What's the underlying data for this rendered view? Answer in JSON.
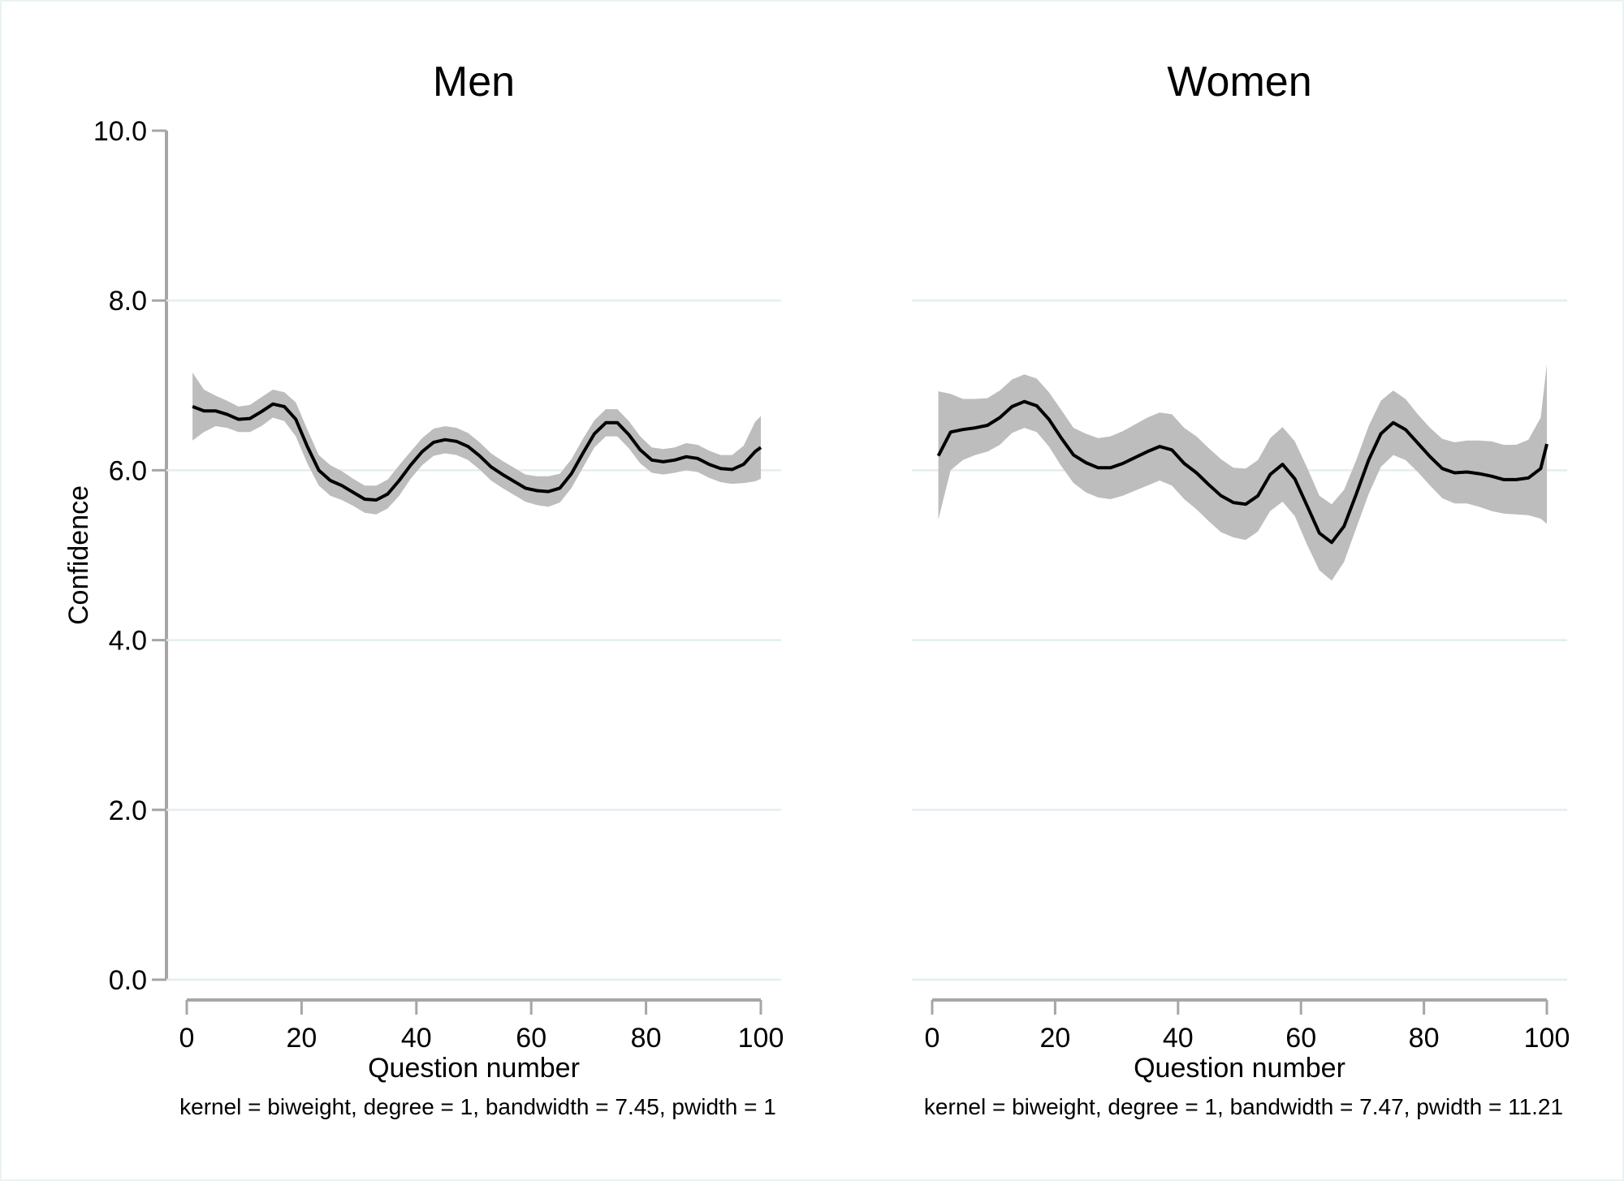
{
  "chart_data": {
    "type": "line",
    "ylabel": "Confidence",
    "ylim": [
      0,
      10
    ],
    "xlim": [
      0,
      100
    ],
    "yticks": [
      "0.0",
      "2.0",
      "4.0",
      "6.0",
      "8.0",
      "10.0"
    ],
    "xticks": [
      "0",
      "20",
      "40",
      "60",
      "80",
      "100"
    ],
    "grid": true,
    "colors": {
      "line": "#000000",
      "band": "#bdbdbd",
      "grid": "#e3eef0",
      "axis": "#a6a6a6"
    },
    "panels": [
      {
        "title": "Men",
        "xlabel": "Question number",
        "note": "kernel = biweight, degree = 1, bandwidth = 7.45, pwidth = 1",
        "series": {
          "x": [
            1,
            3,
            5,
            7,
            9,
            11,
            13,
            15,
            17,
            19,
            21,
            23,
            25,
            27,
            29,
            31,
            33,
            35,
            37,
            39,
            41,
            43,
            45,
            47,
            49,
            51,
            53,
            55,
            57,
            59,
            61,
            63,
            65,
            67,
            69,
            71,
            73,
            75,
            77,
            79,
            81,
            83,
            85,
            87,
            89,
            91,
            93,
            95,
            97,
            99,
            100
          ],
          "y": [
            6.75,
            6.7,
            6.7,
            6.66,
            6.6,
            6.61,
            6.69,
            6.78,
            6.75,
            6.6,
            6.28,
            6.0,
            5.88,
            5.82,
            5.74,
            5.66,
            5.65,
            5.72,
            5.88,
            6.06,
            6.22,
            6.33,
            6.36,
            6.34,
            6.28,
            6.17,
            6.04,
            5.95,
            5.87,
            5.79,
            5.76,
            5.75,
            5.79,
            5.96,
            6.2,
            6.43,
            6.56,
            6.56,
            6.42,
            6.24,
            6.12,
            6.1,
            6.12,
            6.16,
            6.14,
            6.07,
            6.02,
            6.01,
            6.07,
            6.22,
            6.27
          ],
          "lower": [
            6.35,
            6.45,
            6.52,
            6.5,
            6.45,
            6.45,
            6.52,
            6.62,
            6.58,
            6.4,
            6.08,
            5.82,
            5.7,
            5.65,
            5.58,
            5.5,
            5.48,
            5.55,
            5.7,
            5.9,
            6.06,
            6.17,
            6.2,
            6.18,
            6.12,
            6.01,
            5.88,
            5.79,
            5.71,
            5.63,
            5.59,
            5.57,
            5.62,
            5.79,
            6.03,
            6.27,
            6.4,
            6.4,
            6.26,
            6.08,
            5.97,
            5.95,
            5.97,
            6.0,
            5.98,
            5.91,
            5.86,
            5.84,
            5.85,
            5.87,
            5.9
          ],
          "upper": [
            7.15,
            6.95,
            6.88,
            6.82,
            6.75,
            6.77,
            6.86,
            6.95,
            6.92,
            6.8,
            6.48,
            6.18,
            6.06,
            5.99,
            5.9,
            5.82,
            5.82,
            5.89,
            6.06,
            6.22,
            6.38,
            6.49,
            6.52,
            6.5,
            6.44,
            6.33,
            6.2,
            6.11,
            6.03,
            5.95,
            5.93,
            5.93,
            5.96,
            6.13,
            6.37,
            6.59,
            6.72,
            6.72,
            6.58,
            6.4,
            6.27,
            6.25,
            6.27,
            6.32,
            6.3,
            6.23,
            6.18,
            6.18,
            6.29,
            6.57,
            6.64
          ]
        }
      },
      {
        "title": "Women",
        "xlabel": "Question number",
        "note": "kernel = biweight, degree = 1, bandwidth = 7.47, pwidth = 11.21",
        "series": {
          "x": [
            1,
            3,
            5,
            7,
            9,
            11,
            13,
            15,
            17,
            19,
            21,
            23,
            25,
            27,
            29,
            31,
            33,
            35,
            37,
            39,
            41,
            43,
            45,
            47,
            49,
            51,
            53,
            55,
            57,
            59,
            61,
            63,
            65,
            67,
            69,
            71,
            73,
            75,
            77,
            79,
            81,
            83,
            85,
            87,
            89,
            91,
            93,
            95,
            97,
            99,
            100
          ],
          "y": [
            6.17,
            6.45,
            6.48,
            6.5,
            6.53,
            6.62,
            6.75,
            6.81,
            6.76,
            6.6,
            6.38,
            6.18,
            6.09,
            6.03,
            6.03,
            6.08,
            6.15,
            6.22,
            6.28,
            6.24,
            6.08,
            5.97,
            5.83,
            5.7,
            5.62,
            5.6,
            5.7,
            5.95,
            6.07,
            5.9,
            5.58,
            5.26,
            5.15,
            5.34,
            5.72,
            6.12,
            6.43,
            6.56,
            6.48,
            6.32,
            6.16,
            6.02,
            5.97,
            5.98,
            5.96,
            5.93,
            5.89,
            5.89,
            5.91,
            6.02,
            6.31
          ],
          "lower": [
            5.42,
            6.0,
            6.12,
            6.18,
            6.22,
            6.3,
            6.44,
            6.5,
            6.45,
            6.28,
            6.05,
            5.85,
            5.74,
            5.68,
            5.66,
            5.7,
            5.76,
            5.82,
            5.88,
            5.82,
            5.66,
            5.54,
            5.4,
            5.27,
            5.21,
            5.18,
            5.28,
            5.52,
            5.63,
            5.46,
            5.12,
            4.82,
            4.7,
            4.92,
            5.32,
            5.72,
            6.04,
            6.18,
            6.12,
            5.98,
            5.82,
            5.67,
            5.61,
            5.61,
            5.57,
            5.52,
            5.49,
            5.48,
            5.47,
            5.43,
            5.37
          ],
          "upper": [
            6.93,
            6.9,
            6.84,
            6.84,
            6.85,
            6.94,
            7.07,
            7.13,
            7.08,
            6.92,
            6.71,
            6.5,
            6.43,
            6.38,
            6.4,
            6.46,
            6.54,
            6.62,
            6.68,
            6.66,
            6.5,
            6.4,
            6.26,
            6.13,
            6.03,
            6.02,
            6.12,
            6.38,
            6.51,
            6.34,
            6.03,
            5.7,
            5.6,
            5.77,
            6.12,
            6.52,
            6.82,
            6.94,
            6.84,
            6.66,
            6.5,
            6.37,
            6.33,
            6.35,
            6.35,
            6.34,
            6.3,
            6.3,
            6.36,
            6.62,
            7.25
          ]
        }
      }
    ]
  }
}
